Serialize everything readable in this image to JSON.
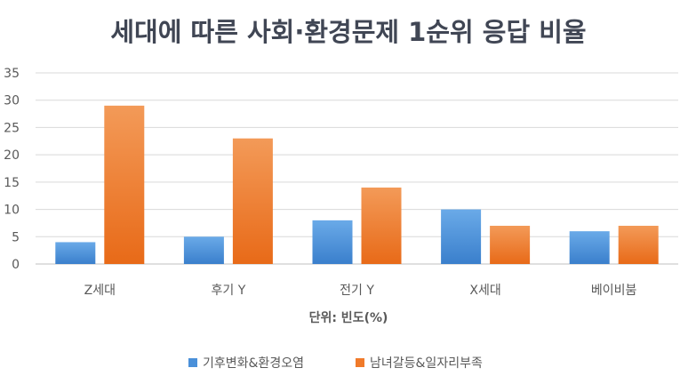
{
  "chart_data": {
    "type": "bar",
    "title": "세대에 따른 사회·환경문제 1순위 응답 비율",
    "xlabel": "단위: 빈도(%)",
    "ylabel": "",
    "ylim": [
      0,
      35
    ],
    "yticks": [
      0,
      5,
      10,
      15,
      20,
      25,
      30,
      35
    ],
    "categories": [
      "Z세대",
      "후기 Y",
      "전기 Y",
      "X세대",
      "베이비붐"
    ],
    "series": [
      {
        "name": "기후변화&환경오염",
        "values": [
          4,
          5,
          8,
          10,
          6
        ],
        "color": "#4A90D9"
      },
      {
        "name": "남녀갈등&일자리부족",
        "values": [
          29,
          23,
          14,
          7,
          7
        ],
        "color": "#F07A2A"
      }
    ],
    "grid": true,
    "legend_position": "bottom"
  }
}
